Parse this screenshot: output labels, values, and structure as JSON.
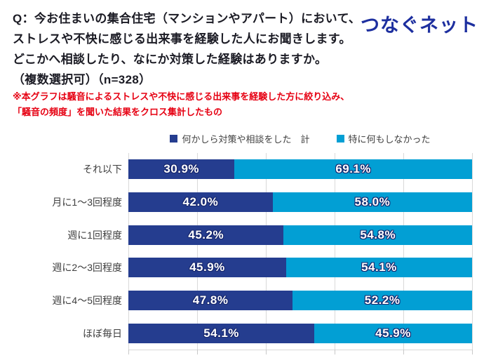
{
  "header": {
    "question_lines": [
      "Q：今お住まいの集合住宅（マンションやアパート）において、",
      "ストレスや不快に感じる出来事を経験した人にお聞きします。",
      "どこかへ相談したり、なにか対策した経験はありますか。",
      "（複数選択可）（n=328）"
    ],
    "note_lines": [
      "※本グラフは騒音によるストレスや不快に感じる出来事を経験した方に絞り込み、",
      "「騒音の頻度」を聞いた結果をクロス集計したもの"
    ],
    "logo_text": "つなぐネット"
  },
  "legend": {
    "items": [
      {
        "label": "何かしら対策や相談をした　計",
        "color": "#253D8F"
      },
      {
        "label": "特に何もしなかった",
        "color": "#029FD4"
      }
    ]
  },
  "chart_data": {
    "type": "bar",
    "orientation": "horizontal",
    "stacked": true,
    "categories": [
      "それ以下",
      "月に1〜3回程度",
      "週に1回程度",
      "週に2〜3回程度",
      "週に4〜5回程度",
      "ほぼ毎日"
    ],
    "series": [
      {
        "name": "何かしら対策や相談をした　計",
        "color": "#253D8F",
        "values": [
          30.9,
          42.0,
          45.2,
          45.9,
          47.8,
          54.1
        ]
      },
      {
        "name": "特に何もしなかった",
        "color": "#029FD4",
        "values": [
          69.1,
          58.0,
          54.8,
          54.1,
          52.2,
          45.9
        ]
      }
    ],
    "value_suffix": "%",
    "xlim": [
      0,
      100
    ],
    "gridline_step": 20,
    "grid": true,
    "legend_position": "top",
    "title": "",
    "xlabel": "",
    "ylabel": ""
  },
  "colors": {
    "series1": "#253D8F",
    "series2": "#029FD4",
    "gridline": "#D9D9D9",
    "title_text": "#1B1B24",
    "note_text": "#E60012",
    "logo_blue": "#1D2F9F",
    "category_text": "#3F3F3F",
    "legend_text": "#404040",
    "bar_label_text": "#FFFFFF",
    "bar_label_outline": "#18286E"
  }
}
